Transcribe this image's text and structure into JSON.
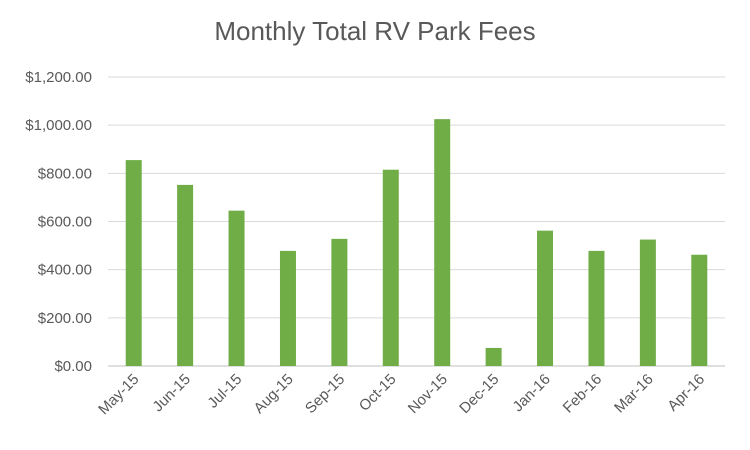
{
  "chart_data": {
    "type": "bar",
    "title": "Monthly Total RV Park Fees",
    "xlabel": "",
    "ylabel": "",
    "categories": [
      "May-15",
      "Jun-15",
      "Jul-15",
      "Aug-15",
      "Sep-15",
      "Oct-15",
      "Nov-15",
      "Dec-15",
      "Jan-16",
      "Feb-16",
      "Mar-16",
      "Apr-16"
    ],
    "values": [
      855,
      752,
      645,
      478,
      528,
      815,
      1025,
      75,
      562,
      478,
      525,
      462
    ],
    "ylim": [
      0,
      1200
    ],
    "yticks": [
      0,
      200,
      400,
      600,
      800,
      1000,
      1200
    ],
    "ytick_labels": [
      "$0.00",
      "$200.00",
      "$400.00",
      "$600.00",
      "$800.00",
      "$1,000.00",
      "$1,200.00"
    ],
    "bar_color": "#70ad47",
    "grid": true,
    "legend": "none"
  }
}
